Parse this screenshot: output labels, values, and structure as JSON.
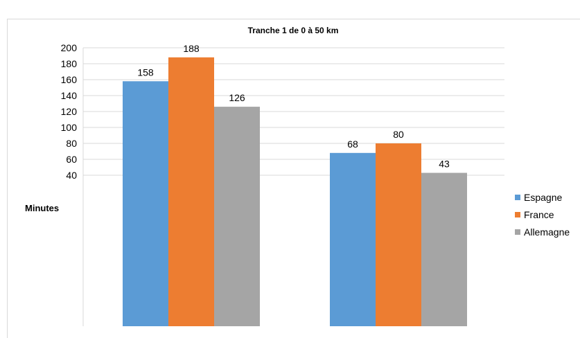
{
  "chart_data": {
    "type": "bar",
    "title": "Tranche 1 de 0 à 50 km",
    "ylabel": "Minutes",
    "xlabel": "",
    "ylim": [
      0,
      200
    ],
    "yticks": [
      40,
      60,
      80,
      100,
      120,
      140,
      160,
      180,
      200
    ],
    "grid": true,
    "legend_position": "right",
    "categories": [
      "",
      ""
    ],
    "series": [
      {
        "name": "Espagne",
        "color": "#5b9bd5",
        "values": [
          158,
          68
        ]
      },
      {
        "name": "France",
        "color": "#ed7d31",
        "values": [
          188,
          80
        ]
      },
      {
        "name": "Allemagne",
        "color": "#a5a5a5",
        "values": [
          126,
          43
        ]
      }
    ]
  }
}
